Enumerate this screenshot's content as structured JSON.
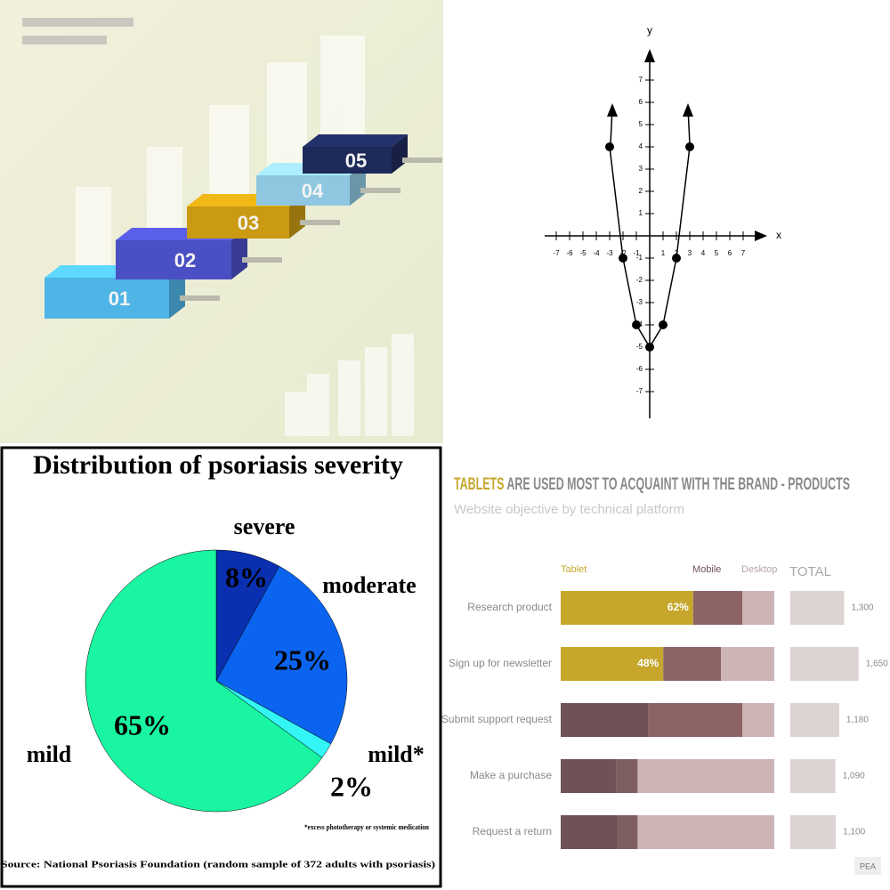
{
  "chart_data": [
    {
      "type": "steps",
      "categories": [
        "01",
        "02",
        "03",
        "04",
        "05"
      ],
      "colors": [
        "#4fb4e6",
        "#4b4fc4",
        "#c99a12",
        "#8fc6e0",
        "#1e2a5a"
      ]
    },
    {
      "type": "line",
      "x_label": "x",
      "y_label": "y",
      "x": [
        -3,
        -2,
        -1,
        0,
        1,
        2,
        3
      ],
      "values": [
        4,
        -1,
        -4,
        -5,
        -4,
        -1,
        4
      ],
      "color": "#000000",
      "xlim": [
        -8,
        8.5
      ],
      "ylim": [
        -8,
        8.5
      ],
      "xticks": [
        -7,
        -6,
        -5,
        -4,
        -3,
        -2,
        -1,
        1,
        2,
        3,
        4,
        5,
        6,
        7
      ],
      "yticks": [
        -7,
        -6,
        -5,
        -4,
        -3,
        -2,
        -1,
        1,
        2,
        3,
        4,
        5,
        6,
        7
      ]
    },
    {
      "type": "pie",
      "title": "Distribution of psoriasis severity",
      "categories": [
        "severe",
        "moderate",
        "mild*",
        "mild"
      ],
      "values": [
        8,
        25,
        2,
        65
      ],
      "value_labels": [
        "8%",
        "25%",
        "2%",
        "65%"
      ],
      "colors": [
        "#0a2fb0",
        "#0a64f0",
        "#33f5f5",
        "#19f5a0"
      ],
      "footnote": "*excess phototherapy or systemic medication",
      "source": "Source: National Psoriasis Foundation (random sample of 372 adults with psoriasis)"
    },
    {
      "type": "stacked_bar",
      "title_highlight": "TABLETS",
      "title": "ARE USED MOST TO ACQUAINT WITH THE BRAND - PRODUCTS",
      "subtitle": "Website objective by technical platform",
      "categories": [
        "Research product",
        "Sign up for newsletter",
        "Submit support request",
        "Make a purchase",
        "Request a return"
      ],
      "series": [
        {
          "name": "Tablet",
          "color": "#c6a72c",
          "colors": [
            "#c6a72c",
            "#c6a72c",
            "#6e5255",
            "#6e5255",
            "#6e5255"
          ],
          "values": [
            62,
            48,
            41,
            26,
            27
          ],
          "value_labels": [
            "62%",
            "48%",
            null,
            null,
            null
          ]
        },
        {
          "name": "Mobile",
          "color": "#6e5255",
          "colors": [
            "#8c6466",
            "#8c6466",
            "#8c6466",
            "#7d5f61",
            "#7d5f61"
          ],
          "values": [
            23,
            27,
            44,
            10,
            9
          ]
        },
        {
          "name": "Desktop",
          "color": "#b8a5a5",
          "colors": [
            "#cdb5b5",
            "#cdb5b5",
            "#cdb5b5",
            "#cdb5b5",
            "#cdb5b5"
          ],
          "values": [
            15,
            25,
            15,
            64,
            64
          ]
        }
      ],
      "xlim": [
        0,
        100
      ],
      "total": {
        "name": "TOTAL",
        "values": [
          1300,
          1650,
          1180,
          1090,
          1100
        ],
        "value_labels": [
          "1,300",
          "1,650",
          "1,180",
          "1,090",
          "1,100"
        ],
        "xlim": [
          0,
          2150
        ],
        "color": "#ddd3d3"
      },
      "logo": "PEA"
    }
  ]
}
